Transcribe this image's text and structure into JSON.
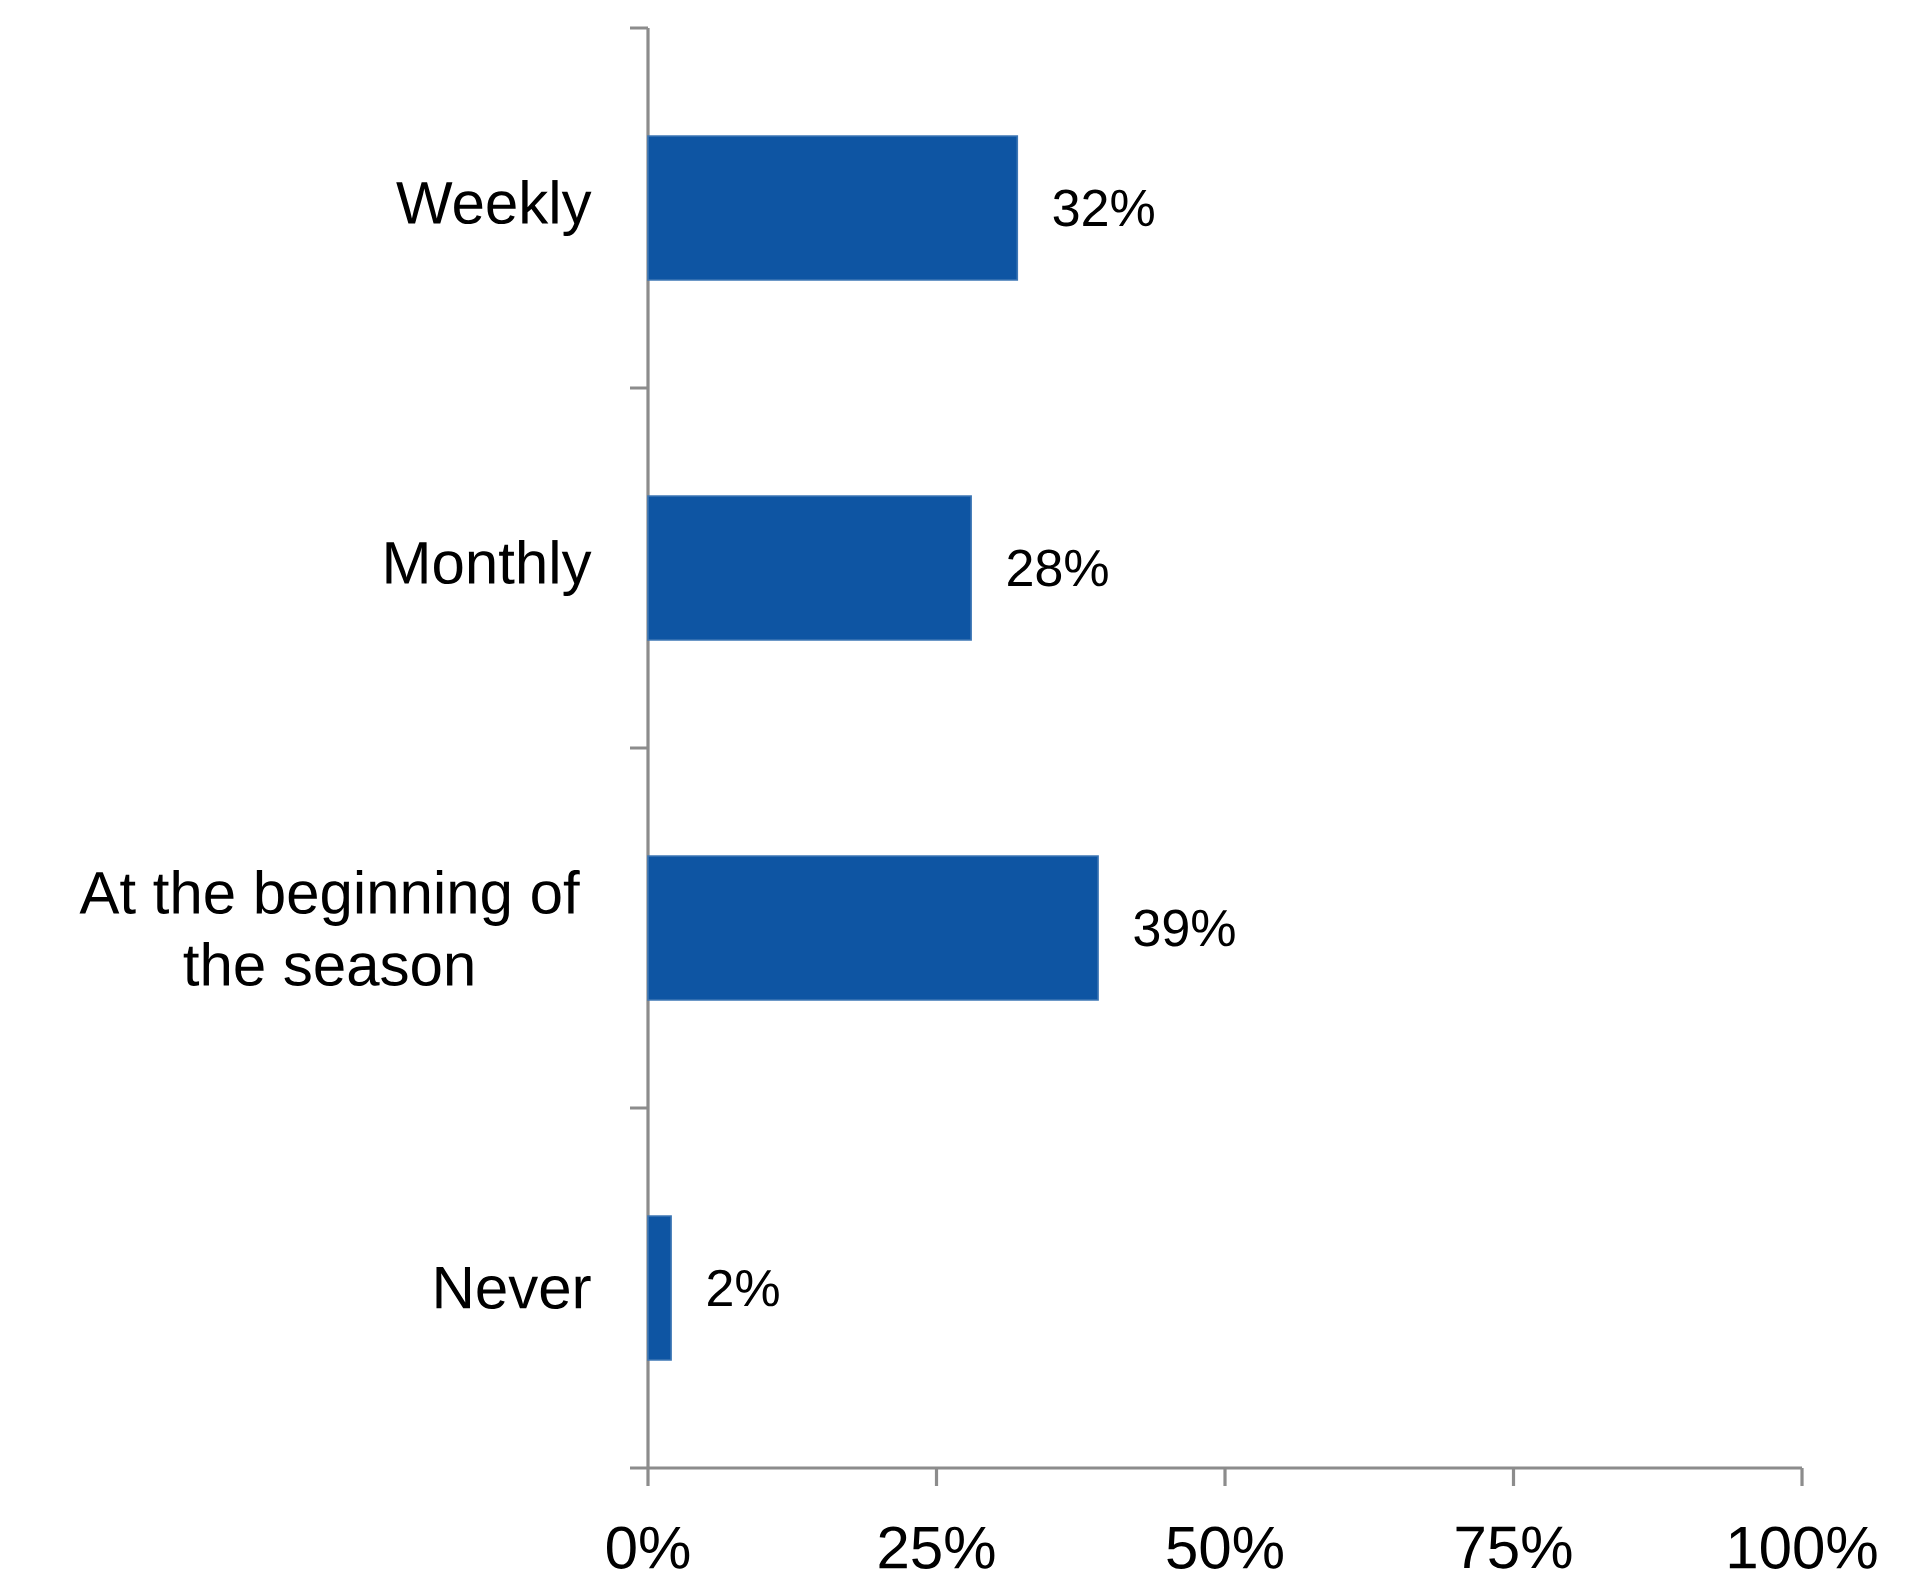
{
  "chart_data": {
    "type": "bar",
    "orientation": "horizontal",
    "categories": [
      "Weekly",
      "Monthly",
      "At the beginning of the season",
      "Never"
    ],
    "values": [
      32,
      28,
      39,
      2
    ],
    "value_labels": [
      "32%",
      "28%",
      "39%",
      "2%"
    ],
    "color": "#0e55a3",
    "xlim": [
      0,
      100
    ],
    "xticks": [
      {
        "value": 0,
        "label": "0%"
      },
      {
        "value": 25,
        "label": "25%"
      },
      {
        "value": 50,
        "label": "50%"
      },
      {
        "value": 75,
        "label": "75%"
      },
      {
        "value": 100,
        "label": "100%"
      }
    ]
  }
}
